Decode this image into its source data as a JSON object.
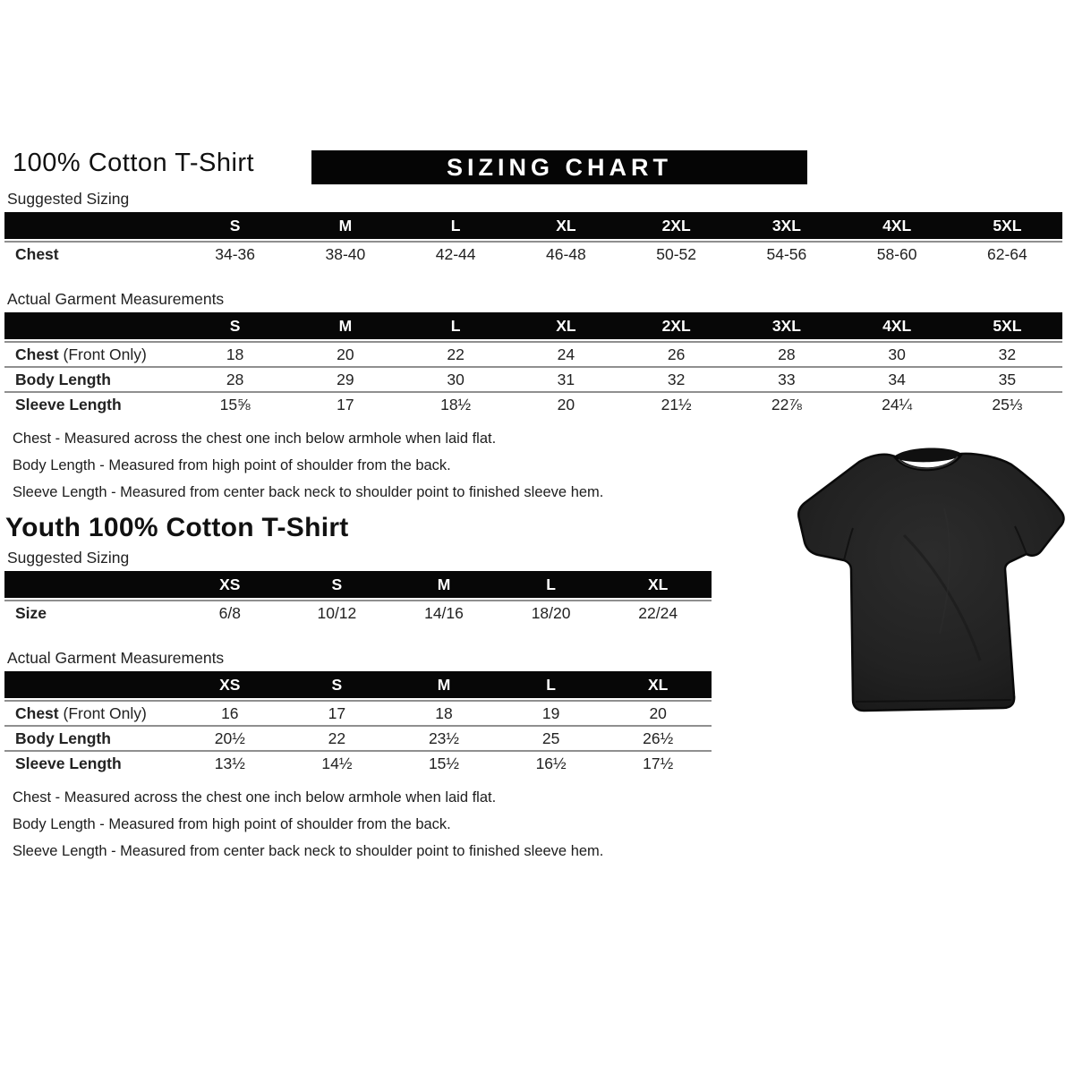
{
  "page": {
    "adult_title": "100% Cotton T-Shirt",
    "banner": "SIZING CHART",
    "youth_title": "Youth 100% Cotton T-Shirt"
  },
  "labels": {
    "suggested": "Suggested Sizing",
    "actual": "Actual Garment Measurements"
  },
  "adult": {
    "suggested": {
      "columns": [
        "S",
        "M",
        "L",
        "XL",
        "2XL",
        "3XL",
        "4XL",
        "5XL"
      ],
      "rows": [
        {
          "label": "Chest",
          "suffix": "",
          "values": [
            "34-36",
            "38-40",
            "42-44",
            "46-48",
            "50-52",
            "54-56",
            "58-60",
            "62-64"
          ]
        }
      ]
    },
    "actual": {
      "columns": [
        "S",
        "M",
        "L",
        "XL",
        "2XL",
        "3XL",
        "4XL",
        "5XL"
      ],
      "rows": [
        {
          "label": "Chest",
          "suffix": " (Front Only)",
          "values": [
            "18",
            "20",
            "22",
            "24",
            "26",
            "28",
            "30",
            "32"
          ]
        },
        {
          "label": "Body Length",
          "suffix": "",
          "values": [
            "28",
            "29",
            "30",
            "31",
            "32",
            "33",
            "34",
            "35"
          ]
        },
        {
          "label": "Sleeve Length",
          "suffix": "",
          "values": [
            "15⅝",
            "17",
            "18½",
            "20",
            "21½",
            "22⅞",
            "24¼",
            "25⅓"
          ]
        }
      ]
    },
    "notes": [
      "Chest - Measured across the chest one inch below armhole when laid flat.",
      "Body Length - Measured from high point of shoulder from the back.",
      "Sleeve Length - Measured from center back neck to shoulder point to finished sleeve hem."
    ]
  },
  "youth": {
    "suggested": {
      "columns": [
        "XS",
        "S",
        "M",
        "L",
        "XL"
      ],
      "rows": [
        {
          "label": "Size",
          "suffix": "",
          "values": [
            "6/8",
            "10/12",
            "14/16",
            "18/20",
            "22/24"
          ]
        }
      ]
    },
    "actual": {
      "columns": [
        "XS",
        "S",
        "M",
        "L",
        "XL"
      ],
      "rows": [
        {
          "label": "Chest",
          "suffix": " (Front Only)",
          "values": [
            "16",
            "17",
            "18",
            "19",
            "20"
          ]
        },
        {
          "label": "Body Length",
          "suffix": "",
          "values": [
            "20½",
            "22",
            "23½",
            "25",
            "26½"
          ]
        },
        {
          "label": "Sleeve Length",
          "suffix": "",
          "values": [
            "13½",
            "14½",
            "15½",
            "16½",
            "17½"
          ]
        }
      ]
    },
    "notes": [
      "Chest - Measured across the chest one inch below armhole when laid flat.",
      "Body Length - Measured from high point of shoulder from the back.",
      "Sleeve Length - Measured from center back neck to shoulder point to finished sleeve hem."
    ]
  },
  "tshirt": {
    "description": "black short-sleeve crew-neck t-shirt",
    "body_color": "#1e1e1e",
    "outline_color": "#0a0a0a"
  }
}
